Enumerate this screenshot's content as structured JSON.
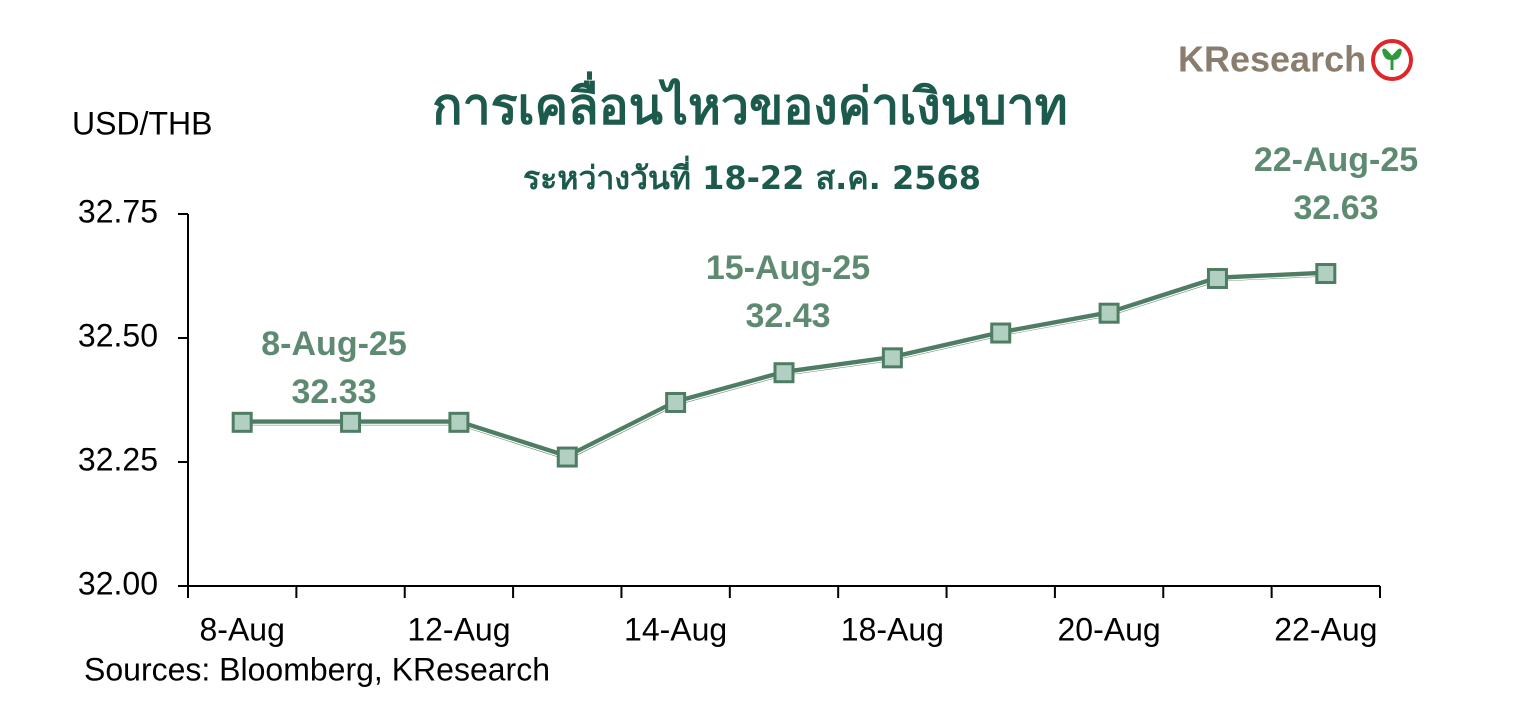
{
  "chart_data": {
    "type": "line",
    "title": "การเคลื่อนไหวของค่าเงินบาท",
    "subtitle": "ระหว่างวันที่ 18-22 ส.ค. 2568",
    "y_label": "USD/THB",
    "source": "Sources: Bloomberg, KResearch",
    "logo": "KResearch",
    "categories": [
      "8-Aug",
      null,
      "12-Aug",
      null,
      "14-Aug",
      null,
      "18-Aug",
      null,
      "20-Aug",
      null,
      "22-Aug"
    ],
    "series": [
      {
        "name": "USD/THB",
        "color": "#4f7d63",
        "marker_fill": "#b2d0c2",
        "values": [
          32.33,
          32.33,
          32.33,
          32.26,
          32.37,
          32.43,
          32.46,
          32.51,
          32.55,
          32.62,
          32.63
        ]
      }
    ],
    "ylim": [
      32.0,
      32.75
    ],
    "yticks": [
      {
        "value": 32.0,
        "label": "32.00"
      },
      32.25,
      {
        "value": 32.5,
        "label": "32.50"
      },
      32.75
    ],
    "annotations": [
      {
        "date": "8-Aug-25",
        "value": 32.33
      },
      {
        "date": "15-Aug-25",
        "value": 32.43
      },
      {
        "date": "22-Aug-25",
        "value": 32.63
      }
    ]
  }
}
